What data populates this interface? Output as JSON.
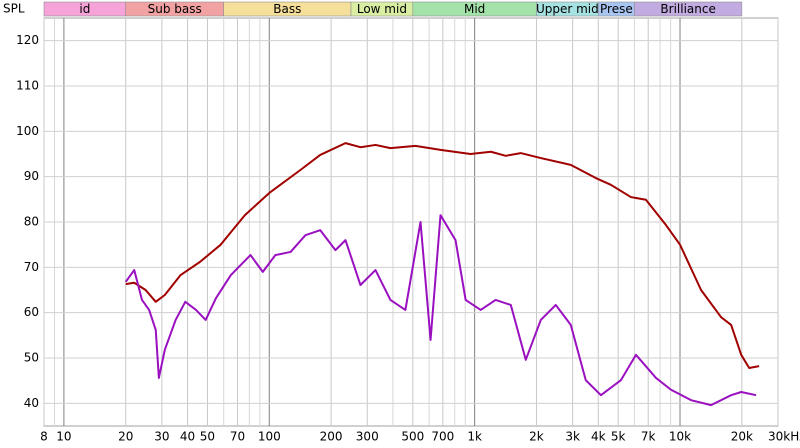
{
  "chart_data": {
    "type": "line",
    "ylabel": "SPL",
    "xscale": "log",
    "xlim": [
      8,
      30000
    ],
    "ylim": [
      35,
      125
    ],
    "xticks": [
      8,
      10,
      20,
      30,
      40,
      50,
      70,
      100,
      200,
      300,
      500,
      700,
      {
        "value": 1000,
        "label": "1k"
      },
      {
        "value": 2000,
        "label": "2k"
      },
      {
        "value": 3000,
        "label": "3k"
      },
      {
        "value": 4000,
        "label": "4k"
      },
      {
        "value": 5000,
        "label": "5k"
      },
      {
        "value": 7000,
        "label": "7k"
      },
      {
        "value": 10000,
        "label": "10k"
      },
      {
        "value": 20000,
        "label": "20k"
      },
      {
        "value": 30000,
        "label": "30kHz"
      }
    ],
    "xminor": [
      9,
      60,
      80,
      90,
      400,
      600,
      800,
      900,
      6000,
      8000,
      9000
    ],
    "yticks": [
      40,
      50,
      60,
      70,
      80,
      90,
      100,
      110,
      120
    ],
    "grid": true,
    "bands": [
      {
        "label": "id",
        "from": 8,
        "to": 20,
        "color": "#f5a3d8"
      },
      {
        "label": "Sub bass",
        "from": 20,
        "to": 60,
        "color": "#f2a2a2"
      },
      {
        "label": "Bass",
        "from": 60,
        "to": 250,
        "color": "#f5df9a"
      },
      {
        "label": "Low mid",
        "from": 250,
        "to": 500,
        "color": "#d9eea2"
      },
      {
        "label": "Mid",
        "from": 500,
        "to": 2000,
        "color": "#a3e2a8"
      },
      {
        "label": "Upper mid",
        "from": 2000,
        "to": 4000,
        "color": "#a6e2e2"
      },
      {
        "label": "Prese",
        "from": 4000,
        "to": 6000,
        "color": "#a8c4f0"
      },
      {
        "label": "Brilliance",
        "from": 6000,
        "to": 20000,
        "color": "#c2abe0"
      }
    ],
    "series": [
      {
        "color": "#a00000",
        "x": [
          20,
          22,
          25,
          28,
          31,
          37,
          46,
          58,
          76,
          100,
          142,
          177,
          235,
          278,
          329,
          389,
          515,
          682,
          955,
          1200,
          1416,
          1676,
          2100,
          2938,
          3890,
          4606,
          5764,
          6823,
          8551,
          10000,
          12660,
          15850,
          17740,
          19860,
          21720,
          24270
        ],
        "values": [
          66.3,
          66.6,
          65,
          62.4,
          63.9,
          68.3,
          71.2,
          75,
          81.5,
          86.4,
          91.5,
          94.8,
          97.4,
          96.5,
          97,
          96.3,
          96.8,
          95.9,
          95,
          95.5,
          94.6,
          95.2,
          94.1,
          92.6,
          89.7,
          88.2,
          85.5,
          84.9,
          79.3,
          75,
          65,
          59,
          57.3,
          50.7,
          47.8,
          48.2
        ]
      },
      {
        "color": "#9a10c0",
        "x": [
          20,
          22,
          24,
          26,
          28,
          29,
          31,
          35,
          39,
          44,
          49,
          55,
          65,
          81,
          93,
          107,
          127,
          150,
          177,
          210,
          235,
          278,
          329,
          389,
          460,
          545,
          610,
          682,
          807,
          904,
          1070,
          1265,
          1500,
          1774,
          2100,
          2483,
          2938,
          3477,
          4120,
          5152,
          6100,
          7640,
          9040,
          11320,
          14160,
          17740,
          19860,
          23480
        ],
        "values": [
          66.8,
          69.4,
          62.8,
          60.6,
          56.2,
          45.6,
          51.8,
          58.4,
          62.4,
          60.6,
          58.4,
          63.2,
          68.3,
          72.7,
          69,
          72.7,
          73.4,
          77.1,
          78.2,
          73.8,
          76,
          66.1,
          69.4,
          62.8,
          60.6,
          80,
          54,
          81.5,
          76,
          62.8,
          60.6,
          62.8,
          61.7,
          49.6,
          58.4,
          61.7,
          57.3,
          45.1,
          41.8,
          45.1,
          50.7,
          45.6,
          43,
          40.7,
          39.6,
          41.8,
          42.5,
          41.8
        ]
      }
    ]
  }
}
